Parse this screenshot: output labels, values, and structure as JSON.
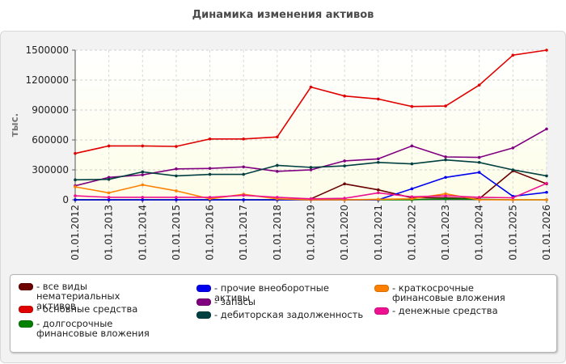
{
  "chart_data": {
    "type": "line",
    "title": "Динамика изменения активов",
    "ylabel": "тыс.",
    "xlabel": "",
    "ylim": [
      0,
      1500000
    ],
    "yticks": [
      0,
      300000,
      600000,
      900000,
      1200000,
      1500000
    ],
    "ytick_labels": [
      "0",
      "300000",
      "600000",
      "900000",
      "1200000",
      "1500000"
    ],
    "grid": true,
    "legend_position": "bottom",
    "categories": [
      "01.01.2012",
      "01.01.2013",
      "01.01.2014",
      "01.01.2015",
      "01.01.2016",
      "01.01.2017",
      "01.01.2018",
      "01.01.2019",
      "01.01.2020",
      "01.01.2021",
      "01.01.2022",
      "01.01.2023",
      "01.01.2024",
      "01.01.2025",
      "01.01.2026"
    ],
    "series": [
      {
        "name": "все виды нематериальных активов",
        "color": "#6b0000",
        "values": [
          0,
          0,
          0,
          0,
          0,
          0,
          0,
          10000,
          160000,
          100000,
          20000,
          20000,
          10000,
          290000,
          160000
        ]
      },
      {
        "name": "основные средства",
        "color": "#e00000",
        "values": [
          465000,
          540000,
          540000,
          535000,
          610000,
          610000,
          630000,
          1130000,
          1040000,
          1010000,
          935000,
          940000,
          1150000,
          1450000,
          1500000
        ]
      },
      {
        "name": "долгосрочные финансовые вложения",
        "color": "#008000",
        "values": [
          0,
          0,
          0,
          0,
          0,
          0,
          0,
          0,
          0,
          0,
          0,
          10000,
          5000,
          0,
          0
        ]
      },
      {
        "name": "прочие внеоборотные активы",
        "color": "#0000ee",
        "values": [
          0,
          0,
          0,
          0,
          0,
          0,
          0,
          0,
          0,
          0,
          110000,
          225000,
          275000,
          35000,
          75000
        ]
      },
      {
        "name": "запасы",
        "color": "#800080",
        "values": [
          140000,
          225000,
          250000,
          310000,
          315000,
          330000,
          285000,
          300000,
          390000,
          410000,
          540000,
          430000,
          425000,
          520000,
          710000
        ]
      },
      {
        "name": "дебиторская задолженность",
        "color": "#004040",
        "values": [
          200000,
          205000,
          280000,
          240000,
          255000,
          255000,
          345000,
          325000,
          340000,
          375000,
          360000,
          400000,
          375000,
          300000,
          240000
        ]
      },
      {
        "name": "краткосрочные финансовые вложения",
        "color": "#ff8000",
        "values": [
          130000,
          70000,
          150000,
          90000,
          10000,
          55000,
          10000,
          0,
          0,
          5000,
          10000,
          60000,
          0,
          0,
          0
        ]
      },
      {
        "name": "денежные средства",
        "color": "#ee1090",
        "values": [
          40000,
          25000,
          25000,
          25000,
          25000,
          45000,
          25000,
          10000,
          15000,
          70000,
          30000,
          40000,
          25000,
          20000,
          165000
        ]
      }
    ]
  }
}
